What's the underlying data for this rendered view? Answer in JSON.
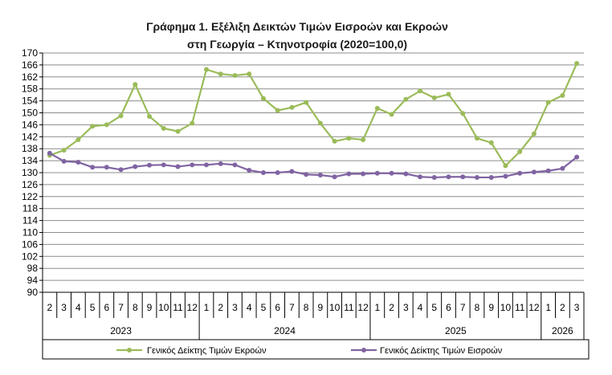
{
  "chart_data": {
    "type": "line",
    "title": "Γράφημα 1. Εξέλιξη Δεικτών Τιμών Εισροών και Εκροών",
    "subtitle": "στη Γεωργία – Κτηνοτροφία (2020=100,0)",
    "xlabel": "",
    "ylabel": "",
    "ylim": [
      90,
      170
    ],
    "yticks": [
      "90",
      "94",
      "98",
      "102",
      "106",
      "110",
      "114",
      "118",
      "122",
      "126",
      "130",
      "134",
      "138",
      "142",
      "146",
      "150",
      "154",
      "158",
      "162",
      "166",
      "170"
    ],
    "x": [
      "2",
      "3",
      "4",
      "5",
      "6",
      "7",
      "8",
      "9",
      "10",
      "11",
      "12",
      "1",
      "2",
      "3",
      "4",
      "5",
      "6",
      "7",
      "8",
      "9",
      "10",
      "11",
      "12",
      "1",
      "2",
      "3",
      "4",
      "5",
      "6",
      "7",
      "8",
      "9",
      "10",
      "11",
      "12",
      "1",
      "2",
      "3"
    ],
    "years": [
      {
        "label": "2023",
        "count": 11
      },
      {
        "label": "2024",
        "count": 12
      },
      {
        "label": "2025",
        "count": 12
      },
      {
        "label": "2026",
        "count": 3
      }
    ],
    "series": [
      {
        "name": "Γενικός Δείκτης Τιμών Εκροών",
        "color": "#9bbb59",
        "values": [
          135.8,
          137.5,
          141.0,
          145.5,
          146.0,
          149.0,
          159.5,
          148.8,
          144.8,
          143.8,
          146.5,
          164.5,
          163.0,
          162.5,
          163.0,
          154.8,
          150.8,
          151.8,
          153.5,
          146.5,
          140.5,
          141.5,
          141.0,
          151.5,
          149.5,
          154.5,
          157.3,
          155.0,
          156.2,
          149.8,
          141.5,
          140.0,
          132.3,
          137.0,
          143.0,
          153.5,
          155.8,
          166.5
        ]
      },
      {
        "name": "Γενικός Δείκτης Τιμών Εισροών",
        "color": "#8064a2",
        "values": [
          136.5,
          133.8,
          133.5,
          131.8,
          131.8,
          131.0,
          132.0,
          132.5,
          132.6,
          132.0,
          132.6,
          132.6,
          133.0,
          132.6,
          130.8,
          130.0,
          130.0,
          130.4,
          129.4,
          129.2,
          128.6,
          129.6,
          129.6,
          129.8,
          129.8,
          129.6,
          128.6,
          128.4,
          128.6,
          128.6,
          128.4,
          128.4,
          128.8,
          129.8,
          130.2,
          130.6,
          131.4,
          135.2
        ]
      }
    ],
    "grid": true,
    "legend_placement": "bottom"
  }
}
